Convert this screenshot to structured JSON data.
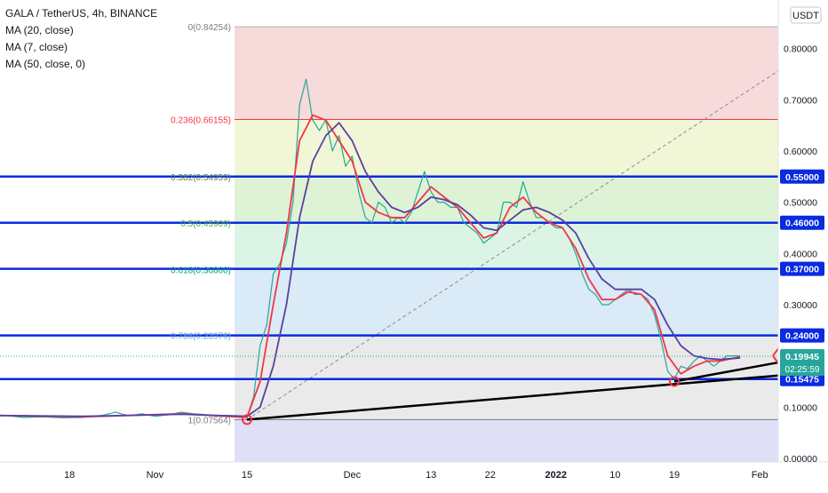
{
  "chart_data": {
    "type": "line",
    "title": "GALA / TetherUS, 4h, BINANCE",
    "indicators": [
      "MA (20, close)",
      "MA (7, close)",
      "MA (50, close, 0)"
    ],
    "currency": "USDT",
    "ylim": [
      0.0,
      0.86
    ],
    "y_ticks": [
      "0.80000",
      "0.70000",
      "0.60000",
      "0.50000",
      "0.40000",
      "0.30000",
      "0.20000",
      "0.10000",
      "0.00000"
    ],
    "x_ticks": [
      {
        "label": "18",
        "day": 18
      },
      {
        "label": "Nov",
        "day": 31
      },
      {
        "label": "15",
        "day": 45
      },
      {
        "label": "Dec",
        "day": 61
      },
      {
        "label": "13",
        "day": 73
      },
      {
        "label": "22",
        "day": 82
      },
      {
        "label": "2022",
        "day": 92
      },
      {
        "label": "10",
        "day": 101
      },
      {
        "label": "19",
        "day": 110
      },
      {
        "label": "Feb",
        "day": 123
      }
    ],
    "fib_levels": [
      {
        "label": "0(0.84254)",
        "value": 0.84254,
        "line": "#b2b5be",
        "fill": "#f6d4d4",
        "label_color": "#787b86"
      },
      {
        "label": "0.236(0.66155)",
        "value": 0.66155,
        "line": "#f23645",
        "fill": "#eef4cf",
        "label_color": "#f23645"
      },
      {
        "label": "0.382(0.54959)",
        "value": 0.54959,
        "line": "#81c784",
        "fill": "#d8f0cf",
        "label_color": "#5d7d5f"
      },
      {
        "label": "0.5(0.45909)",
        "value": 0.45909,
        "line": "#4caf50",
        "fill": "#d5f2e0",
        "label_color": "#4caf50"
      },
      {
        "label": "0.618(0.36860)",
        "value": 0.3686,
        "line": "#089981",
        "fill": "#d3e6f4",
        "label_color": "#089981"
      },
      {
        "label": "0.786(0.23976)",
        "value": 0.23976,
        "line": "#64b5f6",
        "fill": "#e6e6e6",
        "label_color": "#5aa3dd"
      },
      {
        "label": "1(0.07564)",
        "value": 0.07564,
        "line": "#787b86",
        "fill": "#d9d9f4",
        "label_color": "#787b86"
      }
    ],
    "horizontal_lines": [
      {
        "label": "0.55000",
        "value": 0.55
      },
      {
        "label": "0.46000",
        "value": 0.46
      },
      {
        "label": "0.37000",
        "value": 0.37
      },
      {
        "label": "0.24000",
        "value": 0.24
      },
      {
        "label": "0.15475",
        "value": 0.15475
      }
    ],
    "last_price": {
      "value": 0.19945,
      "label": "0.19945",
      "countdown": "02:25:59"
    },
    "trendlines": [
      {
        "from": [
          45,
          0.0756
        ],
        "to": [
          129,
          0.165
        ]
      },
      {
        "from": [
          110,
          0.15
        ],
        "to": [
          127,
          0.19
        ]
      }
    ],
    "diagonal": {
      "from": [
        45,
        0.0756
      ],
      "to": [
        131,
        0.8
      ]
    },
    "arrows": [
      {
        "from": [
          125,
          0.2
        ],
        "to": [
          127,
          0.235
        ]
      },
      {
        "from": [
          125,
          0.2
        ],
        "to": [
          127,
          0.165
        ]
      }
    ],
    "circles": [
      [
        45,
        0.0756
      ],
      [
        110,
        0.15
      ]
    ],
    "price_series": [
      {
        "day": 5,
        "price": 0.085
      },
      {
        "day": 8,
        "price": 0.084
      },
      {
        "day": 11,
        "price": 0.08
      },
      {
        "day": 14,
        "price": 0.081
      },
      {
        "day": 17,
        "price": 0.079
      },
      {
        "day": 20,
        "price": 0.08
      },
      {
        "day": 23,
        "price": 0.084
      },
      {
        "day": 25,
        "price": 0.09
      },
      {
        "day": 27,
        "price": 0.083
      },
      {
        "day": 29,
        "price": 0.087
      },
      {
        "day": 31,
        "price": 0.082
      },
      {
        "day": 33,
        "price": 0.085
      },
      {
        "day": 35,
        "price": 0.09
      },
      {
        "day": 37,
        "price": 0.087
      },
      {
        "day": 39,
        "price": 0.085
      },
      {
        "day": 41,
        "price": 0.083
      },
      {
        "day": 43,
        "price": 0.082
      },
      {
        "day": 45,
        "price": 0.08
      },
      {
        "day": 46,
        "price": 0.12
      },
      {
        "day": 47,
        "price": 0.22
      },
      {
        "day": 48,
        "price": 0.26
      },
      {
        "day": 49,
        "price": 0.36
      },
      {
        "day": 50,
        "price": 0.38
      },
      {
        "day": 51,
        "price": 0.42
      },
      {
        "day": 52,
        "price": 0.5
      },
      {
        "day": 53,
        "price": 0.69
      },
      {
        "day": 54,
        "price": 0.74
      },
      {
        "day": 55,
        "price": 0.66
      },
      {
        "day": 56,
        "price": 0.64
      },
      {
        "day": 57,
        "price": 0.66
      },
      {
        "day": 58,
        "price": 0.6
      },
      {
        "day": 59,
        "price": 0.63
      },
      {
        "day": 60,
        "price": 0.57
      },
      {
        "day": 61,
        "price": 0.59
      },
      {
        "day": 62,
        "price": 0.52
      },
      {
        "day": 63,
        "price": 0.47
      },
      {
        "day": 64,
        "price": 0.46
      },
      {
        "day": 65,
        "price": 0.5
      },
      {
        "day": 66,
        "price": 0.49
      },
      {
        "day": 67,
        "price": 0.46
      },
      {
        "day": 68,
        "price": 0.47
      },
      {
        "day": 69,
        "price": 0.46
      },
      {
        "day": 70,
        "price": 0.48
      },
      {
        "day": 71,
        "price": 0.52
      },
      {
        "day": 72,
        "price": 0.56
      },
      {
        "day": 73,
        "price": 0.52
      },
      {
        "day": 74,
        "price": 0.5
      },
      {
        "day": 75,
        "price": 0.5
      },
      {
        "day": 76,
        "price": 0.49
      },
      {
        "day": 77,
        "price": 0.49
      },
      {
        "day": 78,
        "price": 0.46
      },
      {
        "day": 79,
        "price": 0.45
      },
      {
        "day": 80,
        "price": 0.44
      },
      {
        "day": 81,
        "price": 0.42
      },
      {
        "day": 82,
        "price": 0.43
      },
      {
        "day": 83,
        "price": 0.44
      },
      {
        "day": 84,
        "price": 0.5
      },
      {
        "day": 85,
        "price": 0.5
      },
      {
        "day": 86,
        "price": 0.49
      },
      {
        "day": 87,
        "price": 0.54
      },
      {
        "day": 88,
        "price": 0.5
      },
      {
        "day": 89,
        "price": 0.47
      },
      {
        "day": 90,
        "price": 0.47
      },
      {
        "day": 91,
        "price": 0.46
      },
      {
        "day": 92,
        "price": 0.45
      },
      {
        "day": 93,
        "price": 0.45
      },
      {
        "day": 94,
        "price": 0.43
      },
      {
        "day": 95,
        "price": 0.4
      },
      {
        "day": 96,
        "price": 0.36
      },
      {
        "day": 97,
        "price": 0.33
      },
      {
        "day": 98,
        "price": 0.32
      },
      {
        "day": 99,
        "price": 0.3
      },
      {
        "day": 100,
        "price": 0.3
      },
      {
        "day": 101,
        "price": 0.31
      },
      {
        "day": 102,
        "price": 0.32
      },
      {
        "day": 103,
        "price": 0.33
      },
      {
        "day": 104,
        "price": 0.32
      },
      {
        "day": 105,
        "price": 0.32
      },
      {
        "day": 106,
        "price": 0.31
      },
      {
        "day": 107,
        "price": 0.28
      },
      {
        "day": 108,
        "price": 0.23
      },
      {
        "day": 109,
        "price": 0.17
      },
      {
        "day": 110,
        "price": 0.155
      },
      {
        "day": 111,
        "price": 0.18
      },
      {
        "day": 112,
        "price": 0.175
      },
      {
        "day": 113,
        "price": 0.19
      },
      {
        "day": 114,
        "price": 0.2
      },
      {
        "day": 115,
        "price": 0.19
      },
      {
        "day": 116,
        "price": 0.18
      },
      {
        "day": 117,
        "price": 0.19
      },
      {
        "day": 118,
        "price": 0.2
      },
      {
        "day": 119,
        "price": 0.2
      },
      {
        "day": 120,
        "price": 0.2
      }
    ],
    "ma_series": [
      {
        "name": "MA (7, close)",
        "color": "#f23645",
        "points": [
          {
            "day": 5,
            "price": 0.084
          },
          {
            "day": 20,
            "price": 0.081
          },
          {
            "day": 35,
            "price": 0.087
          },
          {
            "day": 45,
            "price": 0.08
          },
          {
            "day": 47,
            "price": 0.15
          },
          {
            "day": 49,
            "price": 0.3
          },
          {
            "day": 51,
            "price": 0.44
          },
          {
            "day": 53,
            "price": 0.62
          },
          {
            "day": 55,
            "price": 0.67
          },
          {
            "day": 57,
            "price": 0.66
          },
          {
            "day": 59,
            "price": 0.62
          },
          {
            "day": 61,
            "price": 0.58
          },
          {
            "day": 63,
            "price": 0.5
          },
          {
            "day": 65,
            "price": 0.48
          },
          {
            "day": 67,
            "price": 0.47
          },
          {
            "day": 69,
            "price": 0.47
          },
          {
            "day": 71,
            "price": 0.5
          },
          {
            "day": 73,
            "price": 0.53
          },
          {
            "day": 75,
            "price": 0.51
          },
          {
            "day": 77,
            "price": 0.49
          },
          {
            "day": 79,
            "price": 0.46
          },
          {
            "day": 81,
            "price": 0.43
          },
          {
            "day": 83,
            "price": 0.44
          },
          {
            "day": 85,
            "price": 0.49
          },
          {
            "day": 87,
            "price": 0.51
          },
          {
            "day": 89,
            "price": 0.48
          },
          {
            "day": 91,
            "price": 0.46
          },
          {
            "day": 93,
            "price": 0.45
          },
          {
            "day": 95,
            "price": 0.41
          },
          {
            "day": 97,
            "price": 0.35
          },
          {
            "day": 99,
            "price": 0.31
          },
          {
            "day": 101,
            "price": 0.31
          },
          {
            "day": 103,
            "price": 0.325
          },
          {
            "day": 105,
            "price": 0.32
          },
          {
            "day": 107,
            "price": 0.29
          },
          {
            "day": 109,
            "price": 0.2
          },
          {
            "day": 111,
            "price": 0.165
          },
          {
            "day": 113,
            "price": 0.18
          },
          {
            "day": 115,
            "price": 0.19
          },
          {
            "day": 117,
            "price": 0.19
          },
          {
            "day": 120,
            "price": 0.198
          }
        ]
      },
      {
        "name": "MA (20, close)",
        "color": "#5b3fa0",
        "points": [
          {
            "day": 5,
            "price": 0.084
          },
          {
            "day": 20,
            "price": 0.082
          },
          {
            "day": 35,
            "price": 0.086
          },
          {
            "day": 45,
            "price": 0.082
          },
          {
            "day": 47,
            "price": 0.1
          },
          {
            "day": 49,
            "price": 0.18
          },
          {
            "day": 51,
            "price": 0.3
          },
          {
            "day": 53,
            "price": 0.47
          },
          {
            "day": 55,
            "price": 0.58
          },
          {
            "day": 57,
            "price": 0.63
          },
          {
            "day": 59,
            "price": 0.655
          },
          {
            "day": 61,
            "price": 0.62
          },
          {
            "day": 63,
            "price": 0.56
          },
          {
            "day": 65,
            "price": 0.52
          },
          {
            "day": 67,
            "price": 0.49
          },
          {
            "day": 69,
            "price": 0.48
          },
          {
            "day": 71,
            "price": 0.49
          },
          {
            "day": 73,
            "price": 0.51
          },
          {
            "day": 75,
            "price": 0.505
          },
          {
            "day": 77,
            "price": 0.495
          },
          {
            "day": 79,
            "price": 0.475
          },
          {
            "day": 81,
            "price": 0.45
          },
          {
            "day": 83,
            "price": 0.445
          },
          {
            "day": 85,
            "price": 0.465
          },
          {
            "day": 87,
            "price": 0.485
          },
          {
            "day": 89,
            "price": 0.49
          },
          {
            "day": 91,
            "price": 0.48
          },
          {
            "day": 93,
            "price": 0.465
          },
          {
            "day": 95,
            "price": 0.44
          },
          {
            "day": 97,
            "price": 0.39
          },
          {
            "day": 99,
            "price": 0.35
          },
          {
            "day": 101,
            "price": 0.33
          },
          {
            "day": 103,
            "price": 0.33
          },
          {
            "day": 105,
            "price": 0.33
          },
          {
            "day": 107,
            "price": 0.31
          },
          {
            "day": 109,
            "price": 0.26
          },
          {
            "day": 111,
            "price": 0.22
          },
          {
            "day": 113,
            "price": 0.2
          },
          {
            "day": 115,
            "price": 0.195
          },
          {
            "day": 117,
            "price": 0.193
          },
          {
            "day": 120,
            "price": 0.196
          }
        ]
      }
    ]
  }
}
